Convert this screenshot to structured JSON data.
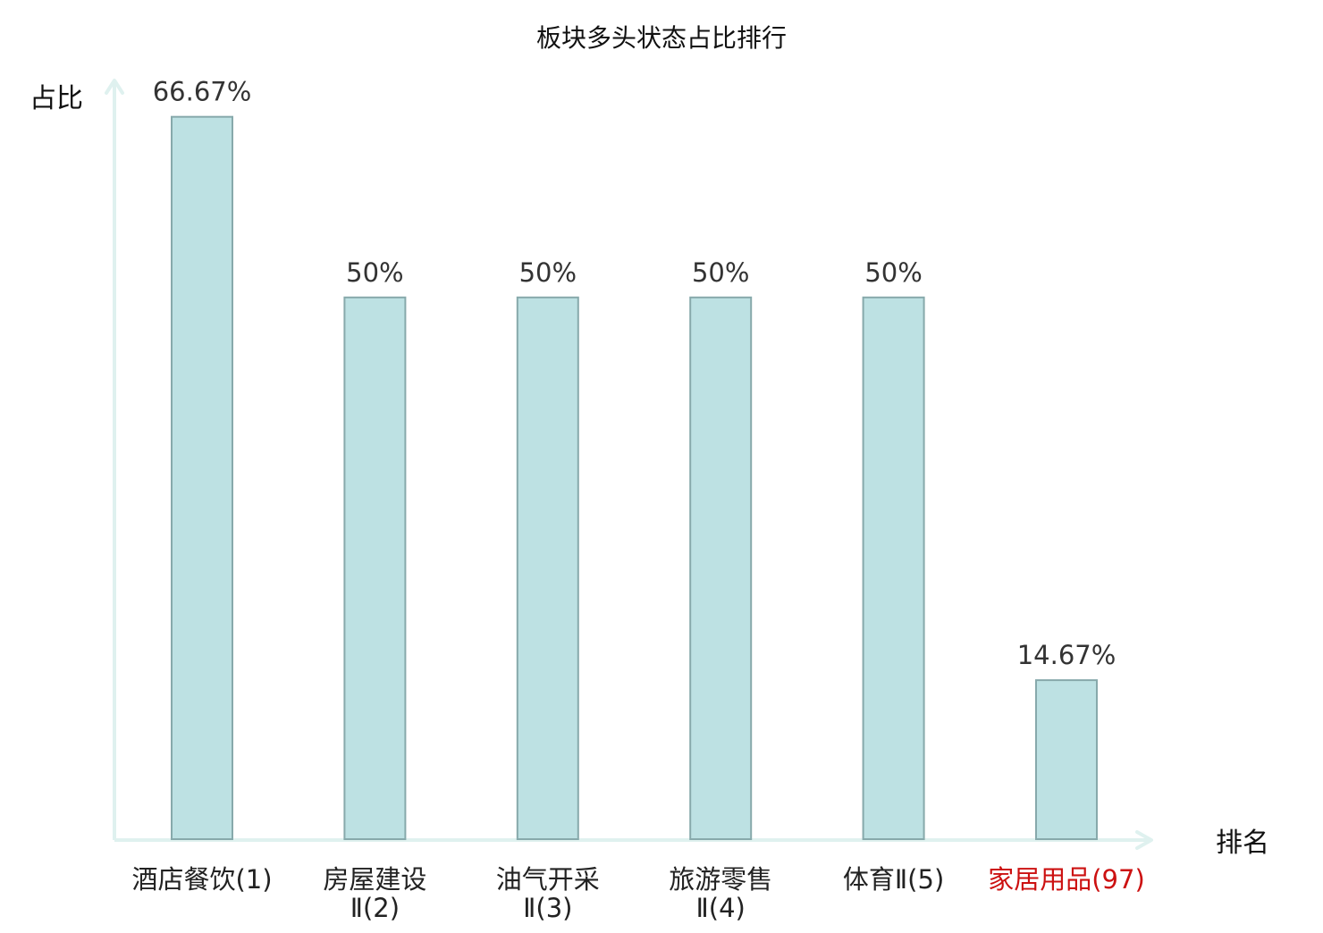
{
  "chart_data": {
    "type": "bar",
    "title": "板块多头状态占比排行",
    "ylabel": "占比",
    "xlabel": "排名",
    "ylim": [
      0,
      70
    ],
    "grid": false,
    "legend": "none",
    "categories": [
      {
        "name": "酒店餐饮",
        "rank": "(1)",
        "lines": [
          "酒店餐饮(1)"
        ],
        "highlight": false
      },
      {
        "name": "房屋建设Ⅱ",
        "rank": "(2)",
        "lines": [
          "房屋建设",
          "Ⅱ(2)"
        ],
        "highlight": false
      },
      {
        "name": "油气开采Ⅱ",
        "rank": "(3)",
        "lines": [
          "油气开采",
          "Ⅱ(3)"
        ],
        "highlight": false
      },
      {
        "name": "旅游零售Ⅱ",
        "rank": "(4)",
        "lines": [
          "旅游零售",
          "Ⅱ(4)"
        ],
        "highlight": false
      },
      {
        "name": "体育Ⅱ",
        "rank": "(5)",
        "lines": [
          "体育Ⅱ(5)"
        ],
        "highlight": false
      },
      {
        "name": "家居用品",
        "rank": "(97)",
        "lines": [
          "家居用品(97)"
        ],
        "highlight": true
      }
    ],
    "values": [
      66.67,
      50,
      50,
      50,
      50,
      14.67
    ],
    "value_labels": [
      "66.67%",
      "50%",
      "50%",
      "50%",
      "50%",
      "14.67%"
    ],
    "colors": {
      "bar_fill": "#bde1e3",
      "bar_stroke": "#87a9ab",
      "axis": "#dff1ef",
      "text": "#222222",
      "value_label": "#333333",
      "highlight_text": "#cc1111"
    }
  }
}
